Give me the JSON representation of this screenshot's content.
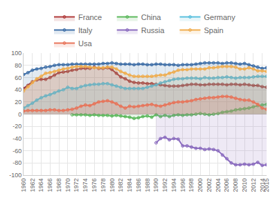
{
  "chart_data": {
    "type": "line",
    "x": [
      1960,
      1961,
      1962,
      1963,
      1964,
      1965,
      1966,
      1967,
      1968,
      1969,
      1970,
      1971,
      1972,
      1973,
      1974,
      1975,
      1976,
      1977,
      1978,
      1979,
      1980,
      1981,
      1982,
      1983,
      1984,
      1985,
      1986,
      1987,
      1988,
      1989,
      1990,
      1991,
      1992,
      1993,
      1994,
      1995,
      1996,
      1997,
      1998,
      1999,
      2000,
      2001,
      2002,
      2003,
      2004,
      2005,
      2006,
      2007,
      2008,
      2009,
      2010,
      2011,
      2012,
      2013,
      2014,
      2015
    ],
    "series": [
      {
        "name": "France",
        "color": "#b03a3a",
        "values": [
          42,
          47,
          53,
          56,
          57,
          57,
          60,
          64,
          68,
          69,
          70,
          72,
          73,
          75,
          75,
          75,
          77,
          75,
          75,
          76,
          73,
          67,
          61,
          58,
          54,
          52,
          51,
          51,
          50,
          50,
          49,
          48,
          47,
          46,
          46,
          46,
          47,
          48,
          49,
          49,
          48,
          48,
          49,
          49,
          49,
          49,
          48,
          49,
          49,
          48,
          49,
          48,
          47,
          47,
          45,
          44
        ]
      },
      {
        "name": "China",
        "color": "#5cb85c",
        "values": [
          null,
          null,
          null,
          null,
          null,
          null,
          null,
          null,
          null,
          null,
          null,
          -1,
          -1,
          -1,
          -1,
          -2,
          -1,
          -2,
          -2,
          -2,
          -3,
          -2,
          -3,
          -4,
          -5,
          -7,
          -6,
          -4,
          -3,
          -5,
          -1,
          -4,
          -2,
          -4,
          -2,
          -1,
          -2,
          -1,
          -1,
          0,
          1,
          0,
          -1,
          0,
          1,
          3,
          4,
          5,
          7,
          8,
          9,
          10,
          12,
          14,
          15,
          16
        ]
      },
      {
        "name": "Germany",
        "color": "#5bc0de",
        "values": [
          10,
          14,
          18,
          23,
          27,
          30,
          32,
          35,
          38,
          40,
          44,
          42,
          42,
          45,
          47,
          48,
          49,
          49,
          50,
          50,
          48,
          46,
          44,
          42,
          42,
          42,
          42,
          42,
          44,
          46,
          48,
          51,
          53,
          55,
          57,
          58,
          58,
          59,
          59,
          59,
          58,
          60,
          59,
          59,
          60,
          60,
          61,
          60,
          59,
          60,
          60,
          60,
          61,
          62,
          62,
          62
        ]
      },
      {
        "name": "Italy",
        "color": "#3f6fa8",
        "values": [
          65,
          68,
          72,
          74,
          75,
          77,
          78,
          80,
          81,
          81,
          81,
          82,
          82,
          82,
          82,
          82,
          82,
          82,
          83,
          83,
          84,
          83,
          82,
          82,
          82,
          81,
          82,
          82,
          81,
          81,
          82,
          82,
          81,
          81,
          81,
          80,
          81,
          81,
          81,
          82,
          83,
          84,
          84,
          84,
          84,
          83,
          84,
          84,
          83,
          82,
          83,
          81,
          79,
          77,
          75,
          76
        ]
      },
      {
        "name": "Russia",
        "color": "#8a6bbf",
        "values": [
          null,
          null,
          null,
          null,
          null,
          null,
          null,
          null,
          null,
          null,
          null,
          null,
          null,
          null,
          null,
          null,
          null,
          null,
          null,
          null,
          null,
          null,
          null,
          null,
          null,
          null,
          null,
          null,
          null,
          null,
          -47,
          -40,
          -38,
          -42,
          -40,
          -41,
          -52,
          -52,
          -54,
          -56,
          -56,
          -58,
          -57,
          -58,
          -60,
          -67,
          -73,
          -80,
          -83,
          -83,
          -82,
          -83,
          -82,
          -79,
          -84,
          -83
        ]
      },
      {
        "name": "Spain",
        "color": "#f0ad4e",
        "values": [
          38,
          45,
          52,
          58,
          62,
          67,
          68,
          70,
          72,
          74,
          75,
          77,
          78,
          78,
          78,
          77,
          76,
          76,
          76,
          77,
          77,
          74,
          70,
          67,
          64,
          62,
          62,
          62,
          62,
          62,
          63,
          64,
          64,
          67,
          69,
          72,
          73,
          73,
          74,
          74,
          74,
          74,
          76,
          76,
          77,
          78,
          78,
          78,
          77,
          74,
          74,
          76,
          74,
          71,
          71,
          70
        ]
      },
      {
        "name": "Usa",
        "color": "#e8745a",
        "values": [
          5,
          6,
          6,
          6,
          6,
          6,
          7,
          7,
          6,
          6,
          7,
          8,
          10,
          13,
          15,
          14,
          17,
          20,
          21,
          22,
          20,
          17,
          13,
          10,
          13,
          12,
          13,
          14,
          15,
          16,
          14,
          13,
          15,
          17,
          19,
          20,
          20,
          21,
          22,
          24,
          25,
          26,
          27,
          27,
          28,
          29,
          29,
          28,
          26,
          24,
          23,
          23,
          20,
          16,
          10,
          8
        ]
      }
    ],
    "xlim": [
      1960,
      2015
    ],
    "xticks": [
      1960,
      1962,
      1964,
      1966,
      1968,
      1970,
      1972,
      1974,
      1976,
      1978,
      1980,
      1982,
      1984,
      1986,
      1988,
      1990,
      1992,
      1994,
      1996,
      1998,
      2000,
      2002,
      2004,
      2006,
      2008,
      2010,
      2012,
      2014,
      2015
    ],
    "ylim": [
      -100,
      100
    ],
    "yticks": [
      -100,
      -80,
      -60,
      -40,
      -20,
      0,
      20,
      40,
      60,
      80,
      100
    ],
    "grid": true,
    "legend": "top",
    "marker": "circle"
  }
}
